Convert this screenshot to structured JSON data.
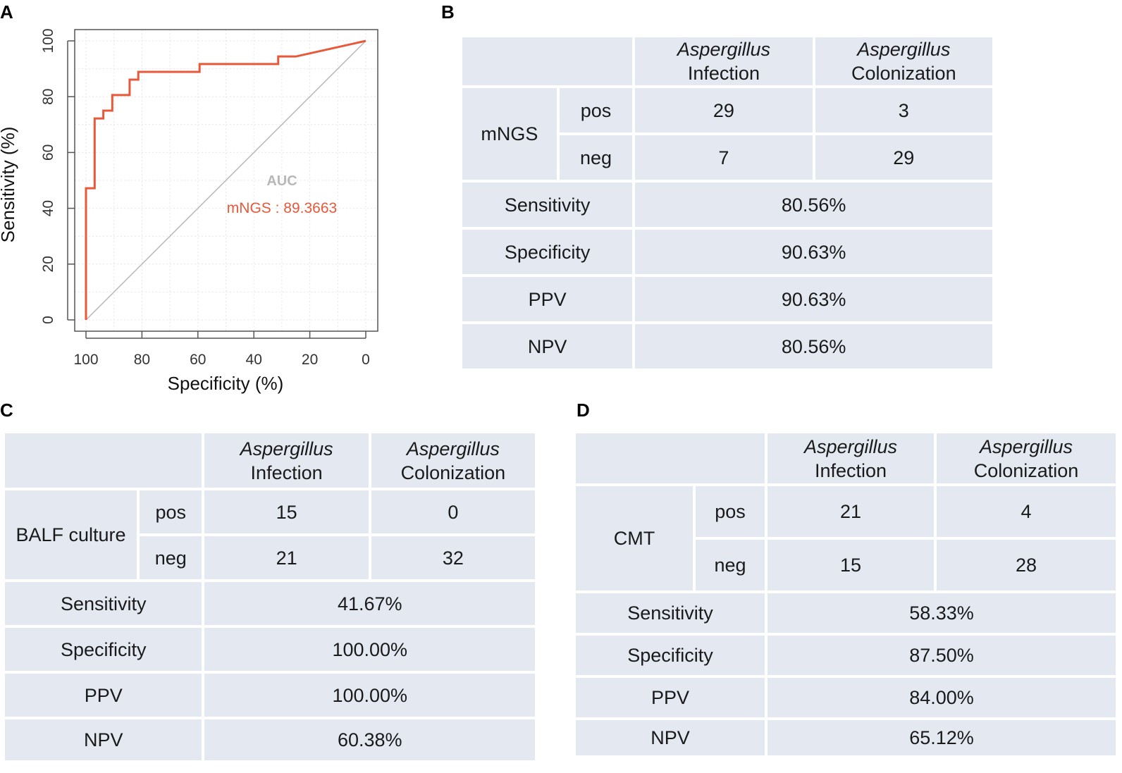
{
  "panels": {
    "a": "A",
    "b": "B",
    "c": "C",
    "d": "D"
  },
  "chart_data": {
    "type": "line",
    "title": "",
    "xlabel": "Specificity (%)",
    "ylabel": "Sensitivity (%)",
    "xlim": [
      100,
      0
    ],
    "ylim": [
      0,
      100
    ],
    "xticks": [
      100,
      80,
      60,
      40,
      20,
      0
    ],
    "yticks": [
      0,
      20,
      40,
      60,
      80,
      100
    ],
    "grid": true,
    "reference_line": {
      "from": [
        100,
        0
      ],
      "to": [
        0,
        100
      ]
    },
    "annotation_title": "AUC",
    "annotation_label": "mNGS : 89.3663",
    "colors": {
      "curve": "#e8583a",
      "diagonal": "#b8b8b8",
      "auc_title": "#b8b8b8",
      "grid": "#e6e6e6"
    },
    "series": [
      {
        "name": "mNGS",
        "specificity": [
          100,
          100,
          96.9,
          96.9,
          93.8,
          93.8,
          90.6,
          90.6,
          84.4,
          84.4,
          81.3,
          81.3,
          62.5,
          62.5,
          59.4,
          59.4,
          34.4,
          34.4,
          31.3,
          31.3,
          25,
          0
        ],
        "sensitivity": [
          0,
          47.2,
          47.2,
          72.2,
          72.2,
          75,
          75,
          80.6,
          80.6,
          86.1,
          86.1,
          88.9,
          88.9,
          88.9,
          88.9,
          91.7,
          91.7,
          91.7,
          91.7,
          94.4,
          94.4,
          100
        ]
      }
    ]
  },
  "tables": [
    {
      "id": "b",
      "test": "mNGS",
      "col_italic": [
        "Aspergillus",
        "Aspergillus"
      ],
      "col_plain": [
        "Infection",
        "Colonization"
      ],
      "pos_label": "pos",
      "neg_label": "neg",
      "pos": [
        "29",
        "3"
      ],
      "neg": [
        "7",
        "29"
      ],
      "metrics": [
        {
          "label": "Sensitivity",
          "value": "80.56%"
        },
        {
          "label": "Specificity",
          "value": "90.63%"
        },
        {
          "label": "PPV",
          "value": "90.63%"
        },
        {
          "label": "NPV",
          "value": "80.56%"
        }
      ]
    },
    {
      "id": "c",
      "test": "BALF culture",
      "col_italic": [
        "Aspergillus",
        "Aspergillus"
      ],
      "col_plain": [
        "Infection",
        "Colonization"
      ],
      "pos_label": "pos",
      "neg_label": "neg",
      "pos": [
        "15",
        "0"
      ],
      "neg": [
        "21",
        "32"
      ],
      "metrics": [
        {
          "label": "Sensitivity",
          "value": "41.67%"
        },
        {
          "label": "Specificity",
          "value": "100.00%"
        },
        {
          "label": "PPV",
          "value": "100.00%"
        },
        {
          "label": "NPV",
          "value": "60.38%"
        }
      ]
    },
    {
      "id": "d",
      "test": "CMT",
      "col_italic": [
        "Aspergillus",
        "Aspergillus"
      ],
      "col_plain": [
        "Infection",
        "Colonization"
      ],
      "pos_label": "pos",
      "neg_label": "neg",
      "pos": [
        "21",
        "4"
      ],
      "neg": [
        "15",
        "28"
      ],
      "metrics": [
        {
          "label": "Sensitivity",
          "value": "58.33%"
        },
        {
          "label": "Specificity",
          "value": "87.50%"
        },
        {
          "label": "PPV",
          "value": "84.00%"
        },
        {
          "label": "NPV",
          "value": "65.12%"
        }
      ]
    }
  ]
}
